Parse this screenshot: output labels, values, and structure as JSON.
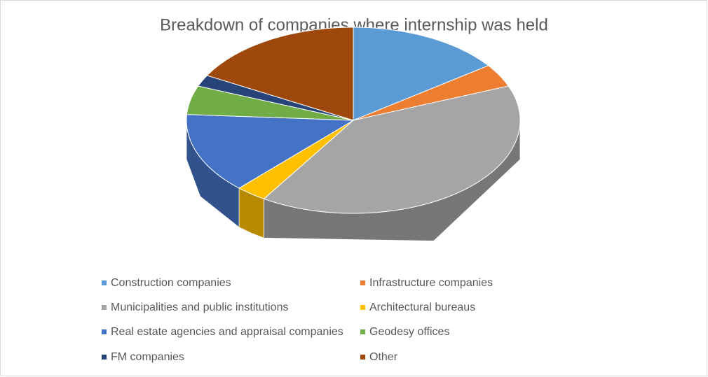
{
  "chart_data": {
    "type": "pie",
    "title": "Breakdown of companies where internship was held",
    "categories": [
      "Construction companies",
      "Infrastructure companies",
      "Municipalities and public institutions",
      "Architectural bureaus",
      "Real estate agencies and appraisal companies",
      "Geodesy offices",
      "FM companies",
      "Other"
    ],
    "values": [
      15,
      4,
      40,
      3,
      14,
      5,
      2,
      17
    ],
    "colors": [
      "#5b9bd5",
      "#ed7d31",
      "#a5a5a5",
      "#ffc000",
      "#4472c4",
      "#70ad47",
      "#264478",
      "#9e480e"
    ],
    "legend": "bottom"
  }
}
